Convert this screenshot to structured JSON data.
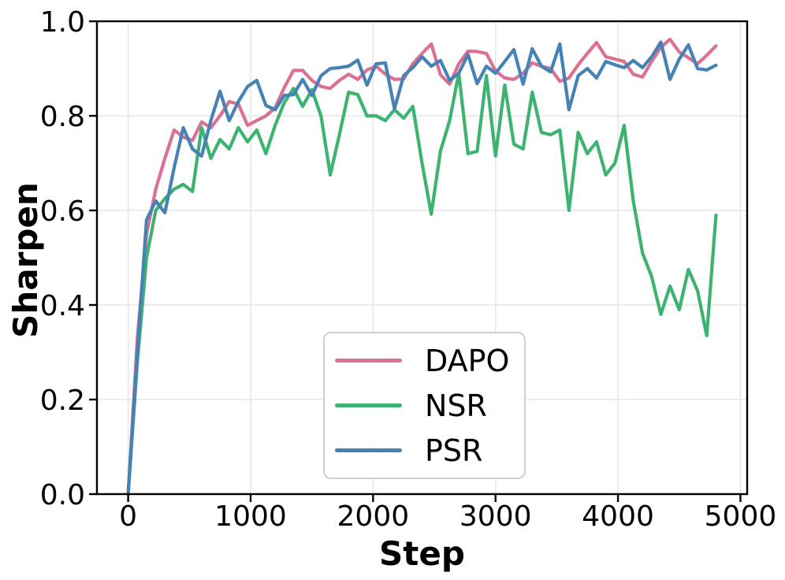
{
  "chart_data": {
    "type": "line",
    "title": "",
    "xlabel": "Step",
    "ylabel": "Sharpen",
    "xlim": [
      -255,
      5055
    ],
    "ylim": [
      0,
      1
    ],
    "x_ticks": [
      0,
      1000,
      2000,
      3000,
      4000,
      5000
    ],
    "x_tick_labels": [
      "0",
      "1000",
      "2000",
      "3000",
      "4000",
      "5000"
    ],
    "y_ticks": [
      0,
      0.2,
      0.4,
      0.6,
      0.8,
      1
    ],
    "y_tick_labels": [
      "0.0",
      "0.2",
      "0.4",
      "0.6",
      "0.8",
      "1.0"
    ],
    "grid": true,
    "grid_color": "#e6e6e6",
    "axis_color": "#000000",
    "background": "#ffffff",
    "legend": {
      "position": "inside-lower-center",
      "entries": [
        "DAPO",
        "NSR",
        "PSR"
      ]
    },
    "x": [
      0,
      75,
      150,
      225,
      300,
      375,
      450,
      525,
      600,
      675,
      750,
      825,
      900,
      975,
      1050,
      1125,
      1200,
      1275,
      1350,
      1425,
      1500,
      1575,
      1650,
      1725,
      1800,
      1875,
      1950,
      2025,
      2100,
      2175,
      2250,
      2325,
      2400,
      2475,
      2550,
      2625,
      2700,
      2775,
      2850,
      2925,
      3000,
      3075,
      3150,
      3225,
      3300,
      3375,
      3450,
      3525,
      3600,
      3675,
      3750,
      3825,
      3900,
      3975,
      4050,
      4125,
      4200,
      4275,
      4350,
      4425,
      4500,
      4575,
      4650,
      4725,
      4800
    ],
    "series": [
      {
        "name": "DAPO",
        "color": "#db7093",
        "values": [
          0,
          0.33,
          0.55,
          0.645,
          0.71,
          0.77,
          0.755,
          0.748,
          0.787,
          0.775,
          0.8,
          0.83,
          0.825,
          0.78,
          0.79,
          0.8,
          0.817,
          0.86,
          0.896,
          0.896,
          0.875,
          0.862,
          0.858,
          0.875,
          0.888,
          0.877,
          0.897,
          0.905,
          0.888,
          0.877,
          0.878,
          0.91,
          0.932,
          0.952,
          0.887,
          0.867,
          0.91,
          0.937,
          0.936,
          0.932,
          0.895,
          0.88,
          0.877,
          0.89,
          0.912,
          0.905,
          0.9,
          0.873,
          0.88,
          0.908,
          0.932,
          0.955,
          0.925,
          0.92,
          0.915,
          0.888,
          0.882,
          0.915,
          0.945,
          0.962,
          0.935,
          0.923,
          0.91,
          0.928,
          0.948
        ]
      },
      {
        "name": "NSR",
        "color": "#3cb371",
        "values": [
          0,
          0.28,
          0.5,
          0.6,
          0.625,
          0.645,
          0.655,
          0.64,
          0.775,
          0.71,
          0.75,
          0.73,
          0.775,
          0.745,
          0.77,
          0.72,
          0.78,
          0.828,
          0.858,
          0.82,
          0.855,
          0.8,
          0.675,
          0.76,
          0.85,
          0.845,
          0.8,
          0.8,
          0.79,
          0.813,
          0.795,
          0.82,
          0.7,
          0.592,
          0.725,
          0.79,
          0.89,
          0.72,
          0.725,
          0.885,
          0.715,
          0.865,
          0.74,
          0.73,
          0.85,
          0.765,
          0.76,
          0.77,
          0.6,
          0.765,
          0.72,
          0.745,
          0.675,
          0.7,
          0.78,
          0.62,
          0.51,
          0.46,
          0.38,
          0.44,
          0.39,
          0.475,
          0.43,
          0.335,
          0.59
        ]
      },
      {
        "name": "PSR",
        "color": "#4682b4",
        "values": [
          0,
          0.3,
          0.58,
          0.62,
          0.595,
          0.69,
          0.775,
          0.73,
          0.715,
          0.79,
          0.852,
          0.79,
          0.83,
          0.862,
          0.875,
          0.822,
          0.813,
          0.843,
          0.845,
          0.877,
          0.843,
          0.885,
          0.9,
          0.902,
          0.905,
          0.918,
          0.865,
          0.91,
          0.912,
          0.815,
          0.885,
          0.902,
          0.925,
          0.905,
          0.917,
          0.875,
          0.89,
          0.93,
          0.868,
          0.905,
          0.89,
          0.915,
          0.94,
          0.867,
          0.942,
          0.905,
          0.893,
          0.952,
          0.813,
          0.885,
          0.9,
          0.88,
          0.915,
          0.908,
          0.902,
          0.917,
          0.902,
          0.925,
          0.956,
          0.877,
          0.92,
          0.95,
          0.9,
          0.897,
          0.907
        ]
      }
    ]
  }
}
